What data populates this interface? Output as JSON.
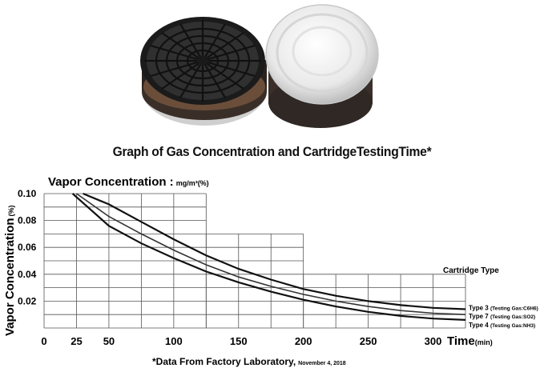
{
  "title": "Graph of Gas Concentration and CartridgeTestingTime*",
  "footnote": {
    "main": "*Data From Factory Laboratory,",
    "date": "November 4, 2018"
  },
  "photo": {
    "left_name": "black-cartridge",
    "right_name": "white-cartridge"
  },
  "chart_data": {
    "type": "line",
    "title": "",
    "top_label": "Vapor Concentration :",
    "top_label_unit": "mg/m³(%)",
    "ylabel": "Vapor Concentration",
    "ylabel_unit": "(%)",
    "xlabel": "Time",
    "xlabel_unit": "(min)",
    "x_ticks": [
      "0",
      "25",
      "50",
      "100",
      "150",
      "200",
      "250",
      "300"
    ],
    "y_ticks": [
      "0.10",
      "0.08",
      "0.06",
      "0.04",
      "0.02"
    ],
    "xlim": [
      0,
      325
    ],
    "ylim": [
      0,
      0.1
    ],
    "legend_title": "Cartridge Type",
    "series": [
      {
        "name": "Type 3",
        "gas": "(Testing Gas:C6H6)",
        "x": [
          30,
          50,
          75,
          100,
          125,
          150,
          175,
          200,
          225,
          250,
          275,
          300,
          325
        ],
        "y": [
          0.1,
          0.092,
          0.079,
          0.066,
          0.054,
          0.044,
          0.036,
          0.029,
          0.024,
          0.02,
          0.017,
          0.015,
          0.014
        ]
      },
      {
        "name": "Type 7",
        "gas": "(Testing Gas:SO2)",
        "x": [
          25,
          50,
          75,
          100,
          125,
          150,
          175,
          200,
          225,
          250,
          275,
          300,
          325
        ],
        "y": [
          0.1,
          0.083,
          0.07,
          0.058,
          0.047,
          0.038,
          0.031,
          0.025,
          0.02,
          0.016,
          0.013,
          0.011,
          0.01
        ]
      },
      {
        "name": "Type 4",
        "gas": "(Testing Gas:NH3)",
        "x": [
          22,
          50,
          75,
          100,
          125,
          150,
          175,
          200,
          225,
          250,
          275,
          300,
          325
        ],
        "y": [
          0.1,
          0.076,
          0.063,
          0.052,
          0.042,
          0.034,
          0.027,
          0.021,
          0.016,
          0.012,
          0.009,
          0.007,
          0.006
        ]
      }
    ]
  }
}
